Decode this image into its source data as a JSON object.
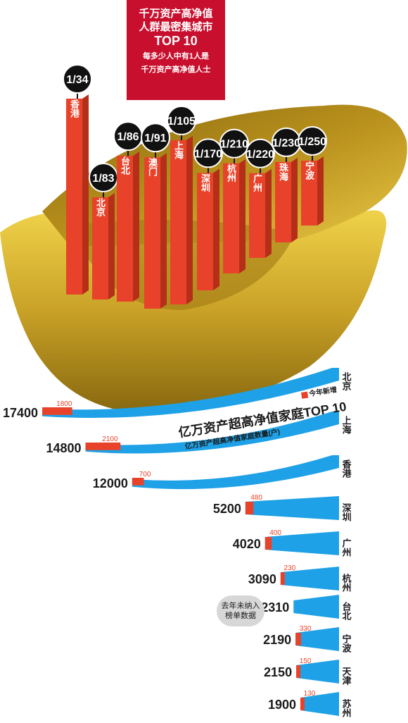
{
  "top_title": {
    "line1": "千万资产高净值",
    "line2": "人群最密集城市",
    "line3": "TOP 10",
    "note1": "每多少人中有1人是",
    "note2": "千万资产高净值人士"
  },
  "bottom_title": {
    "main": "亿万资产超高净值家庭TOP 10",
    "sub": "亿万资产超高净值家庭数量(户)"
  },
  "legend": {
    "new_label": "今年新增"
  },
  "note": {
    "line1": "去年未纳入",
    "line2": "榜单数据"
  },
  "colors": {
    "red": "#e8432a",
    "blue": "#1ea1e6",
    "gold": "#c9a227",
    "dark": "#1a1a1a"
  },
  "chart_data": [
    {
      "type": "bar",
      "categories": [
        "香港",
        "北京",
        "台北",
        "澳门",
        "上海",
        "深圳",
        "杭州",
        "广州",
        "珠海",
        "宁波"
      ],
      "ratio_labels": [
        "1/34",
        "1/83",
        "1/86",
        "1/91",
        "1/105",
        "1/170",
        "1/210",
        "1/220",
        "1/230",
        "1/250"
      ],
      "values": [
        34,
        83,
        86,
        91,
        105,
        170,
        210,
        220,
        230,
        250
      ]
    },
    {
      "type": "bar",
      "categories": [
        "北京",
        "上海",
        "香港",
        "深圳",
        "广州",
        "杭州",
        "台北",
        "宁波",
        "天津",
        "苏州"
      ],
      "series": [
        {
          "name": "亿万资产超高净值家庭数量(户)",
          "values": [
            17400,
            14800,
            12000,
            5200,
            4020,
            3090,
            2310,
            2190,
            2150,
            1900
          ]
        },
        {
          "name": "今年新增",
          "values": [
            1800,
            2100,
            700,
            480,
            400,
            230,
            null,
            330,
            150,
            130
          ]
        }
      ]
    }
  ]
}
